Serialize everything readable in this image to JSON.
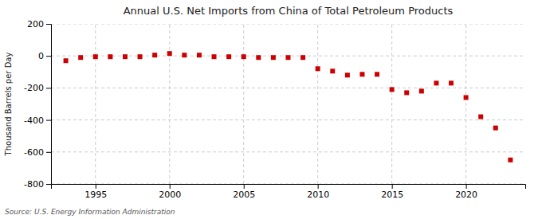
{
  "chart_data": {
    "type": "scatter",
    "title": "Annual U.S. Net Imports from China of Total Petroleum Products",
    "y_label": "Thousand Barrels per Day",
    "annotations": [
      "Source: U.S. Energy Information Administration"
    ],
    "x": [
      1993,
      1994,
      1995,
      1996,
      1997,
      1998,
      1999,
      2000,
      2001,
      2002,
      2003,
      2004,
      2005,
      2006,
      2007,
      2008,
      2009,
      2010,
      2011,
      2012,
      2013,
      2014,
      2015,
      2016,
      2017,
      2018,
      2019,
      2020,
      2021,
      2022,
      2023
    ],
    "values": [
      -30,
      -10,
      -5,
      -5,
      -5,
      -5,
      5,
      15,
      5,
      5,
      -5,
      -5,
      -5,
      -10,
      -10,
      -10,
      -10,
      -80,
      -95,
      -120,
      -115,
      -115,
      -210,
      -230,
      -220,
      -170,
      -170,
      -260,
      -380,
      -450,
      -650
    ],
    "color": "#cc0000",
    "marker": "square",
    "xlim": [
      1992,
      2024
    ],
    "ylim": [
      -800,
      200
    ],
    "xticks": [
      1995,
      2000,
      2005,
      2010,
      2015,
      2020
    ],
    "yticks": [
      -800,
      -600,
      -400,
      -200,
      0,
      200
    ],
    "grid": true
  }
}
